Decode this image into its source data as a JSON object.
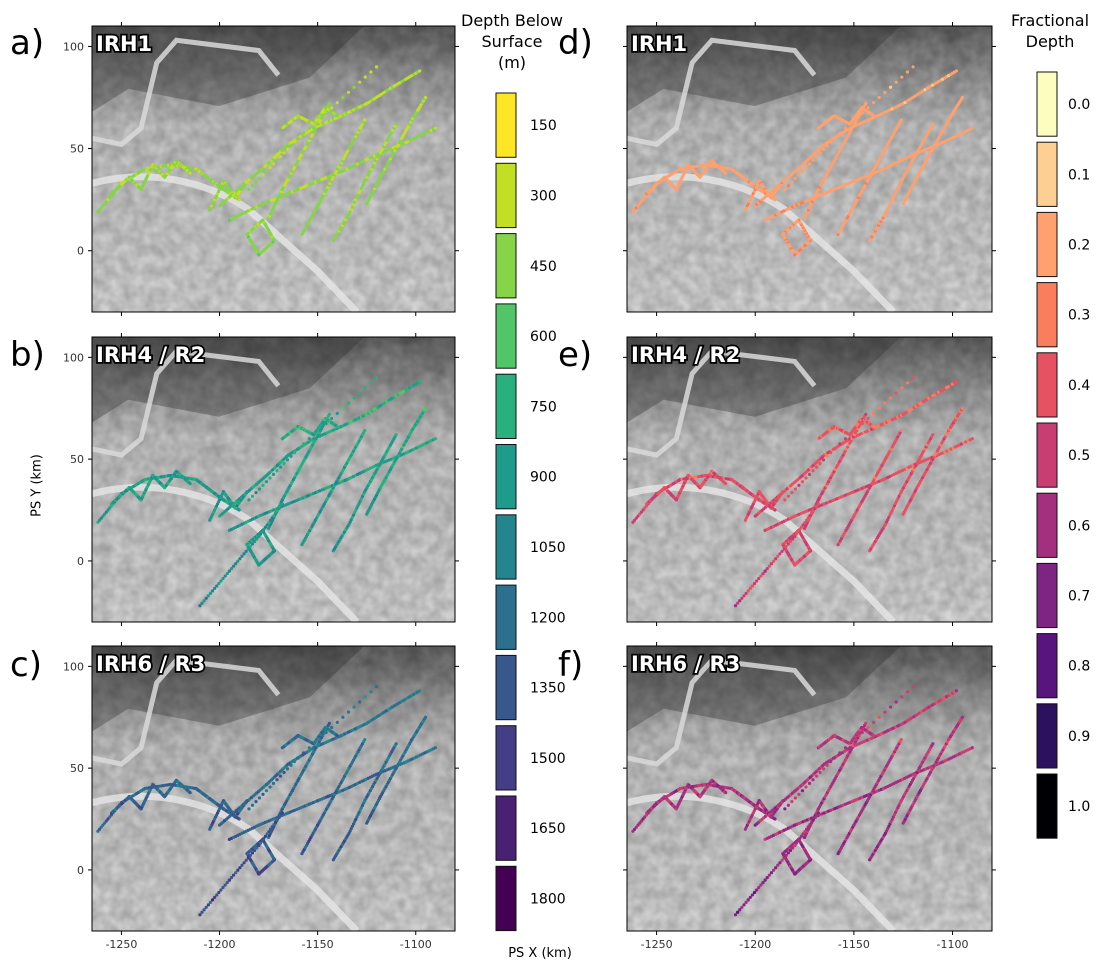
{
  "figure": {
    "x_axis_title": "PS X (km)",
    "y_axis_title": "PS Y (km)",
    "x_ticks": [
      "-1250",
      "-1200",
      "-1150",
      "-1100"
    ],
    "y_ticks": [
      "100",
      "50",
      "0"
    ]
  },
  "panels": [
    {
      "letter": "a)",
      "name": "IRH1"
    },
    {
      "letter": "b)",
      "name": "IRH4 / R2"
    },
    {
      "letter": "c)",
      "name": "IRH6 / R3"
    },
    {
      "letter": "d)",
      "name": "IRH1"
    },
    {
      "letter": "e)",
      "name": "IRH4 / R2"
    },
    {
      "letter": "f)",
      "name": "IRH6 / R3"
    }
  ],
  "depth_colorbar": {
    "title": [
      "Depth Below",
      "Surface",
      "(m)"
    ],
    "labels": [
      "150",
      "300",
      "450",
      "600",
      "750",
      "900",
      "1050",
      "1200",
      "1350",
      "1500",
      "1650",
      "1800"
    ],
    "colors": [
      "#fde725",
      "#c2df23",
      "#86d549",
      "#52c569",
      "#2ab07f",
      "#1e9b8a",
      "#25858e",
      "#2d708e",
      "#38588c",
      "#433e85",
      "#482173",
      "#440154"
    ]
  },
  "fraction_colorbar": {
    "title": [
      "Fractional",
      "Depth"
    ],
    "labels": [
      "0.0",
      "0.1",
      "0.2",
      "0.3",
      "0.4",
      "0.5",
      "0.6",
      "0.7",
      "0.8",
      "0.9",
      "1.0"
    ],
    "colors": [
      "#fcfdbf",
      "#fecf92",
      "#fea16e",
      "#fa7d5e",
      "#e75263",
      "#c83e73",
      "#a3307e",
      "#7e2482",
      "#59157e",
      "#2c115f",
      "#000004"
    ]
  },
  "chart_data": [
    {
      "type": "scatter",
      "panel": "a",
      "name": "IRH1",
      "color_variable": "Depth Below Surface (m)",
      "color_range": [
        150,
        1800
      ],
      "typical_depth_range_m": [
        150,
        600
      ],
      "xlim": [
        -1265,
        -1080
      ],
      "ylim": [
        -30,
        110
      ],
      "xlabel": "",
      "ylabel": ""
    },
    {
      "type": "scatter",
      "panel": "b",
      "name": "IRH4 / R2",
      "color_variable": "Depth Below Surface (m)",
      "color_range": [
        150,
        1800
      ],
      "typical_depth_range_m": [
        300,
        1200
      ],
      "xlim": [
        -1265,
        -1080
      ],
      "ylim": [
        -30,
        110
      ],
      "xlabel": "",
      "ylabel": "PS Y (km)"
    },
    {
      "type": "scatter",
      "panel": "c",
      "name": "IRH6 / R3",
      "color_variable": "Depth Below Surface (m)",
      "color_range": [
        150,
        1800
      ],
      "typical_depth_range_m": [
        450,
        1500
      ],
      "xlim": [
        -1265,
        -1080
      ],
      "ylim": [
        -30,
        110
      ],
      "xlabel": "",
      "ylabel": ""
    },
    {
      "type": "scatter",
      "panel": "d",
      "name": "IRH1",
      "color_variable": "Fractional Depth",
      "color_range": [
        0.0,
        1.0
      ],
      "typical_fraction_range": [
        0.1,
        0.3
      ],
      "xlim": [
        -1265,
        -1080
      ],
      "ylim": [
        -30,
        110
      ],
      "xlabel": "",
      "ylabel": ""
    },
    {
      "type": "scatter",
      "panel": "e",
      "name": "IRH4 / R2",
      "color_variable": "Fractional Depth",
      "color_range": [
        0.0,
        1.0
      ],
      "typical_fraction_range": [
        0.2,
        0.7
      ],
      "xlim": [
        -1265,
        -1080
      ],
      "ylim": [
        -30,
        110
      ],
      "xlabel": "",
      "ylabel": ""
    },
    {
      "type": "scatter",
      "panel": "f",
      "name": "IRH6 / R3",
      "color_variable": "Fractional Depth",
      "color_range": [
        0.0,
        1.0
      ],
      "typical_fraction_range": [
        0.3,
        0.8
      ],
      "xlim": [
        -1265,
        -1080
      ],
      "ylim": [
        -30,
        110
      ],
      "xlabel": "",
      "ylabel": ""
    }
  ]
}
